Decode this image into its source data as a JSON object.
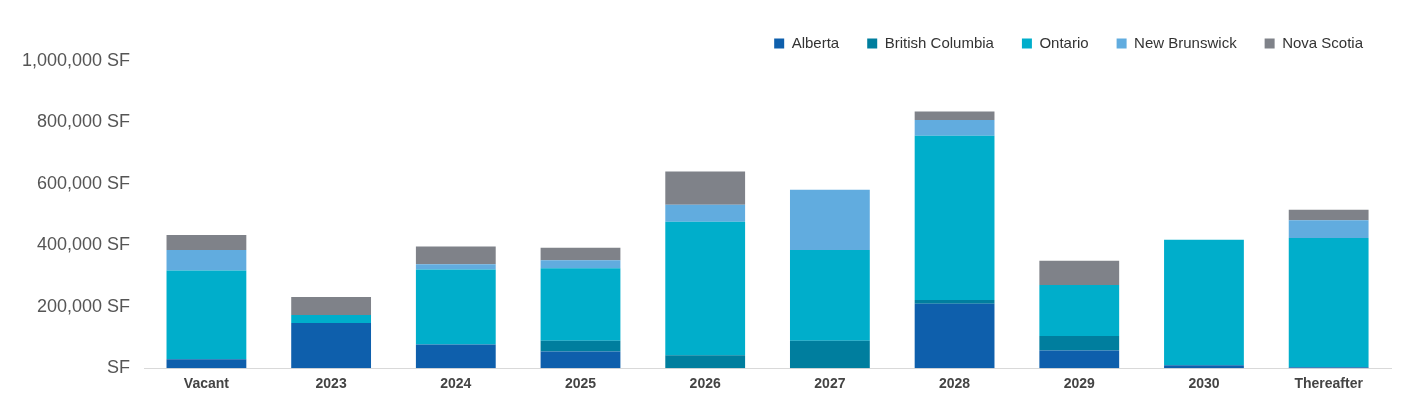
{
  "chart_data": {
    "type": "bar",
    "stacked": true,
    "legend": "top right",
    "grid": false,
    "categories": [
      "Vacant",
      "2023",
      "2024",
      "2025",
      "2026",
      "2027",
      "2028",
      "2029",
      "2030",
      "Thereafter"
    ],
    "ylim": [
      0,
      1000000
    ],
    "yticks": [
      {
        "value": 0,
        "label": "SF"
      },
      {
        "value": 200000,
        "label": "200,000 SF"
      },
      {
        "value": 400000,
        "label": "400,000 SF"
      },
      {
        "value": 600000,
        "label": "600,000 SF"
      },
      {
        "value": 800000,
        "label": "800,000 SF"
      },
      {
        "value": 1000000,
        "label": "1,000,000 SF"
      }
    ],
    "series": [
      {
        "name": "Alberta",
        "color": "#0e5fac",
        "values": [
          29000,
          147000,
          77000,
          54000,
          0,
          0,
          210000,
          58000,
          10000,
          3000
        ]
      },
      {
        "name": "British Columbia",
        "color": "#007e9e",
        "values": [
          0,
          0,
          0,
          35000,
          42000,
          89000,
          12000,
          47000,
          0,
          0
        ]
      },
      {
        "name": "Ontario",
        "color": "#00aecb",
        "values": [
          289000,
          26000,
          244000,
          236000,
          435000,
          296000,
          535000,
          166000,
          408000,
          421000
        ]
      },
      {
        "name": "New Brunswick",
        "color": "#61acdf",
        "values": [
          67000,
          0,
          17000,
          26000,
          55000,
          196000,
          51000,
          0,
          0,
          58000
        ]
      },
      {
        "name": "Nova Scotia",
        "color": "#7f8289",
        "values": [
          49000,
          59000,
          58000,
          41000,
          108000,
          0,
          28000,
          79000,
          0,
          34000
        ]
      }
    ]
  }
}
